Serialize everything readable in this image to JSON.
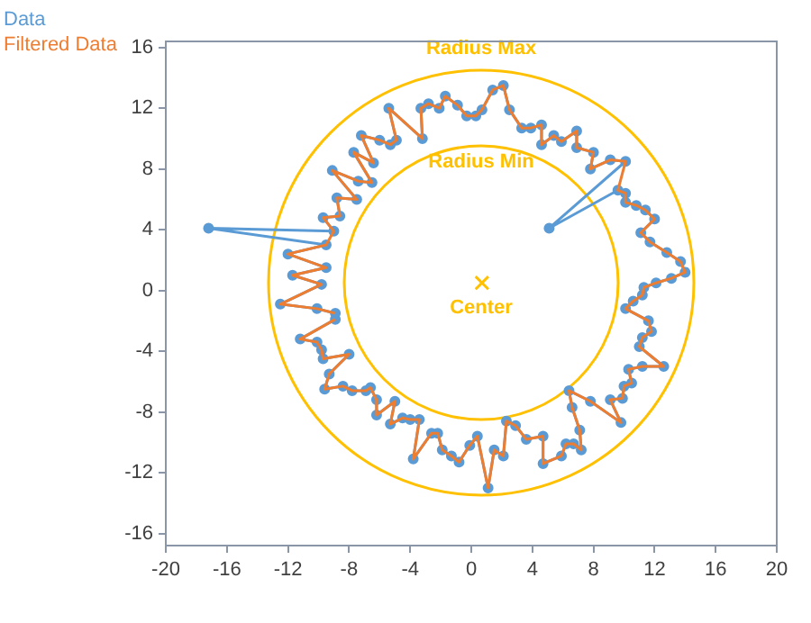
{
  "chart_data": {
    "type": "line",
    "xlim": [
      -20,
      20
    ],
    "xticks": [
      -20,
      -16,
      -12,
      -8,
      -4,
      0,
      4,
      8,
      12,
      16,
      20
    ],
    "ylim": [
      -16.8,
      16.4
    ],
    "yticks": [
      -16,
      -12,
      -8,
      -4,
      0,
      4,
      8,
      12,
      16
    ],
    "grid": false,
    "legend": "top left",
    "annotations": [
      "Radius Max",
      "Radius Min",
      "Center"
    ],
    "series": [
      {
        "type": "scatter",
        "color": "#ffc000",
        "marker": "cross",
        "x": [
          0.7
        ],
        "values": [
          0.5
        ]
      },
      {
        "name": "Data",
        "type": "line",
        "color": "#5b9bd5",
        "marker": "circle",
        "x": [
          -8.9,
          -10.1,
          -12.5,
          -9.8,
          -11.7,
          -9.5,
          -12.0,
          -9.5,
          -17.2,
          -9.0,
          -9.7,
          -8.6,
          -8.8,
          -7.5,
          -9.1,
          -7.4,
          -6.5,
          -7.7,
          -6.4,
          -7.2,
          -6.0,
          -5.3,
          -4.9,
          -5.4,
          -3.2,
          -3.3,
          -2.8,
          -2.1,
          -1.7,
          -0.9,
          -0.3,
          0.3,
          0.7,
          1.4,
          2.1,
          2.5,
          3.3,
          3.9,
          4.6,
          4.6,
          5.4,
          5.9,
          6.9,
          6.9,
          8.0,
          7.8,
          9.1,
          10.1,
          5.1,
          9.6,
          10.1,
          10.1,
          10.8,
          11.4,
          12.0,
          11.1,
          11.7,
          12.8,
          13.7,
          14.0,
          13.1,
          12.1,
          11.3,
          11.2,
          10.6,
          10.1,
          11.6,
          11.8,
          11.2,
          11.0,
          12.6,
          11.2,
          10.3,
          10.5,
          10.0,
          9.9,
          9.1,
          9.8,
          7.8,
          6.4,
          6.6,
          7.1,
          7.2,
          6.7,
          6.2,
          5.9,
          4.7,
          4.7,
          3.6,
          2.9,
          2.3,
          2.1,
          1.5,
          1.1,
          0.4,
          -0.1,
          -0.8,
          -1.3,
          -1.9,
          -2.2,
          -2.6,
          -3.8,
          -3.4,
          -4.0,
          -4.5,
          -5.3,
          -5.0,
          -6.2,
          -6.2,
          -6.6,
          -6.9,
          -7.8,
          -8.4,
          -9.6,
          -9.3,
          -8.0,
          -9.7,
          -9.8,
          -10.1,
          -11.2,
          -8.9
        ],
        "values": [
          -1.5,
          -1.2,
          -0.9,
          0.4,
          1.0,
          1.5,
          2.4,
          3.0,
          4.1,
          3.9,
          4.8,
          4.9,
          6.1,
          6.0,
          7.9,
          7.2,
          7.1,
          9.1,
          8.4,
          10.2,
          9.9,
          9.6,
          9.9,
          12.0,
          10.0,
          12.0,
          12.3,
          12.0,
          12.8,
          12.2,
          11.5,
          11.5,
          11.9,
          13.2,
          13.5,
          11.9,
          10.7,
          10.7,
          10.9,
          9.6,
          10.2,
          9.8,
          10.5,
          9.4,
          9.1,
          8.0,
          8.6,
          8.5,
          4.1,
          6.6,
          6.4,
          5.8,
          5.6,
          5.3,
          4.7,
          3.8,
          3.2,
          2.5,
          1.9,
          1.2,
          0.8,
          0.5,
          0.2,
          -0.3,
          -0.7,
          -1.2,
          -2.0,
          -2.7,
          -3.1,
          -3.7,
          -5.0,
          -5.0,
          -5.2,
          -6.1,
          -6.3,
          -7.1,
          -7.2,
          -8.7,
          -7.3,
          -6.6,
          -7.7,
          -9.2,
          -10.5,
          -10.1,
          -10.1,
          -10.9,
          -11.4,
          -9.6,
          -9.8,
          -8.9,
          -8.6,
          -10.9,
          -10.5,
          -13.0,
          -9.6,
          -10.2,
          -11.3,
          -10.9,
          -10.5,
          -9.4,
          -9.4,
          -11.1,
          -8.5,
          -8.5,
          -8.4,
          -8.8,
          -7.3,
          -8.2,
          -7.2,
          -6.4,
          -6.6,
          -6.6,
          -6.3,
          -6.5,
          -5.5,
          -4.2,
          -4.5,
          -3.9,
          -3.4,
          -3.2,
          -1.9
        ]
      },
      {
        "name": "Filtered Data",
        "type": "line",
        "color": "#ed7d31",
        "marker": "none",
        "x": [
          -8.9,
          -10.1,
          -12.5,
          -9.8,
          -11.7,
          -9.5,
          -12.0,
          -9.5,
          -9.0,
          -9.7,
          -8.6,
          -8.8,
          -7.5,
          -9.1,
          -7.4,
          -6.5,
          -7.7,
          -6.4,
          -7.2,
          -6.0,
          -5.3,
          -4.9,
          -5.4,
          -3.2,
          -3.3,
          -2.8,
          -2.1,
          -1.7,
          -0.9,
          -0.3,
          0.3,
          0.7,
          1.4,
          2.1,
          2.5,
          3.3,
          3.9,
          4.6,
          4.6,
          5.4,
          5.9,
          6.9,
          6.9,
          8.0,
          7.8,
          9.1,
          10.1,
          9.6,
          10.1,
          10.1,
          10.8,
          11.4,
          12.0,
          11.1,
          11.7,
          12.8,
          13.7,
          14.0,
          13.1,
          12.1,
          11.3,
          11.2,
          10.6,
          10.1,
          11.6,
          11.8,
          11.2,
          11.0,
          12.6,
          11.2,
          10.3,
          10.5,
          10.0,
          9.9,
          9.1,
          9.8,
          7.8,
          6.4,
          6.6,
          7.1,
          7.2,
          6.7,
          6.2,
          5.9,
          4.7,
          4.7,
          3.6,
          2.9,
          2.3,
          2.1,
          1.5,
          1.1,
          0.4,
          -0.1,
          -0.8,
          -1.3,
          -1.9,
          -2.2,
          -2.6,
          -3.8,
          -3.4,
          -4.0,
          -4.5,
          -5.3,
          -5.0,
          -6.2,
          -6.2,
          -6.6,
          -6.9,
          -7.8,
          -8.4,
          -9.6,
          -9.3,
          -8.0,
          -9.7,
          -9.8,
          -10.1,
          -11.2,
          -8.9
        ],
        "values": [
          -1.5,
          -1.2,
          -0.9,
          0.4,
          1.0,
          1.5,
          2.4,
          3.0,
          3.9,
          4.8,
          4.9,
          6.1,
          6.0,
          7.9,
          7.2,
          7.1,
          9.1,
          8.4,
          10.2,
          9.9,
          9.6,
          9.9,
          12.0,
          10.0,
          12.0,
          12.3,
          12.0,
          12.8,
          12.2,
          11.5,
          11.5,
          11.9,
          13.2,
          13.5,
          11.9,
          10.7,
          10.7,
          10.9,
          9.6,
          10.2,
          9.8,
          10.5,
          9.4,
          9.1,
          8.0,
          8.6,
          8.5,
          6.6,
          6.4,
          5.8,
          5.6,
          5.3,
          4.7,
          3.8,
          3.2,
          2.5,
          1.9,
          1.2,
          0.8,
          0.5,
          0.2,
          -0.3,
          -0.7,
          -1.2,
          -2.0,
          -2.7,
          -3.1,
          -3.7,
          -5.0,
          -5.0,
          -5.2,
          -6.1,
          -6.3,
          -7.1,
          -7.2,
          -8.7,
          -7.3,
          -6.6,
          -7.7,
          -9.2,
          -10.5,
          -10.1,
          -10.1,
          -10.9,
          -11.4,
          -9.6,
          -9.8,
          -8.9,
          -8.6,
          -10.9,
          -10.5,
          -13.0,
          -9.6,
          -10.2,
          -11.3,
          -10.9,
          -10.5,
          -9.4,
          -9.4,
          -11.1,
          -8.5,
          -8.5,
          -8.4,
          -8.8,
          -7.3,
          -8.2,
          -7.2,
          -6.4,
          -6.6,
          -6.6,
          -6.3,
          -6.5,
          -5.5,
          -4.2,
          -4.5,
          -3.9,
          -3.4,
          -3.2,
          -1.9
        ]
      }
    ]
  }
}
